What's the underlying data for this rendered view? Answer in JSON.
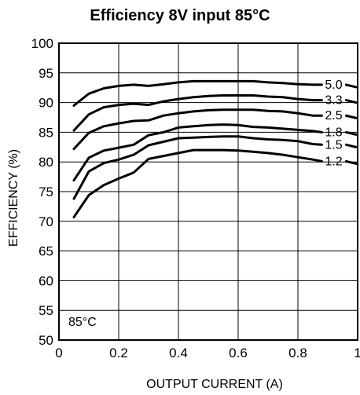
{
  "chart_data": {
    "type": "line",
    "title": "Efficiency 8V input 85°C",
    "xlabel": "OUTPUT CURRENT (A)",
    "ylabel": "EFFICIENCY (%)",
    "xlim": [
      0,
      1
    ],
    "ylim": [
      50,
      100
    ],
    "xticks": [
      0,
      0.2,
      0.4,
      0.6,
      0.8,
      1
    ],
    "xtick_labels": [
      "0",
      "0.2",
      "0.4",
      "0.6",
      "0.8",
      "1"
    ],
    "yticks": [
      50,
      55,
      60,
      65,
      70,
      75,
      80,
      85,
      90,
      95,
      100
    ],
    "ytick_labels": [
      "50",
      "55",
      "60",
      "65",
      "70",
      "75",
      "80",
      "85",
      "90",
      "95",
      "100"
    ],
    "grid": true,
    "annotation": "85°C",
    "series": [
      {
        "name": "5.0",
        "x": [
          0.05,
          0.1,
          0.15,
          0.2,
          0.25,
          0.3,
          0.35,
          0.4,
          0.45,
          0.5,
          0.55,
          0.6,
          0.65,
          0.7,
          0.75,
          0.8,
          0.85,
          0.88
        ],
        "y": [
          89.5,
          91.5,
          92.4,
          92.8,
          93.0,
          92.8,
          93.1,
          93.4,
          93.6,
          93.6,
          93.6,
          93.6,
          93.6,
          93.4,
          93.3,
          93.1,
          93.0,
          93.0
        ]
      },
      {
        "name": "3.3",
        "x": [
          0.05,
          0.1,
          0.15,
          0.2,
          0.25,
          0.3,
          0.35,
          0.4,
          0.45,
          0.5,
          0.55,
          0.6,
          0.65,
          0.7,
          0.75,
          0.8,
          0.85,
          0.88
        ],
        "y": [
          85.3,
          88.0,
          89.2,
          89.6,
          89.8,
          89.6,
          90.2,
          90.6,
          90.9,
          91.1,
          91.2,
          91.2,
          91.2,
          91.0,
          90.9,
          90.6,
          90.4,
          90.4
        ]
      },
      {
        "name": "2.5",
        "x": [
          0.05,
          0.1,
          0.15,
          0.2,
          0.25,
          0.3,
          0.35,
          0.4,
          0.45,
          0.5,
          0.55,
          0.6,
          0.65,
          0.7,
          0.75,
          0.8,
          0.85,
          0.88
        ],
        "y": [
          82.2,
          84.9,
          86.0,
          86.5,
          86.9,
          87.0,
          87.8,
          88.2,
          88.5,
          88.7,
          88.8,
          88.8,
          88.8,
          88.6,
          88.5,
          88.2,
          87.8,
          87.8
        ]
      },
      {
        "name": "1.8",
        "x": [
          0.05,
          0.1,
          0.15,
          0.2,
          0.25,
          0.3,
          0.35,
          0.4,
          0.45,
          0.5,
          0.55,
          0.6,
          0.65,
          0.7,
          0.75,
          0.8,
          0.85,
          0.88
        ],
        "y": [
          76.9,
          80.7,
          81.9,
          82.4,
          82.9,
          84.5,
          85.0,
          85.8,
          86.0,
          86.2,
          86.3,
          86.2,
          85.9,
          85.8,
          85.6,
          85.4,
          85.2,
          85.0
        ]
      },
      {
        "name": "1.5",
        "x": [
          0.05,
          0.1,
          0.15,
          0.2,
          0.25,
          0.3,
          0.35,
          0.4,
          0.45,
          0.5,
          0.55,
          0.6,
          0.65,
          0.7,
          0.75,
          0.8,
          0.85,
          0.88
        ],
        "y": [
          73.8,
          78.4,
          79.8,
          80.4,
          81.2,
          82.8,
          83.4,
          84.0,
          84.1,
          84.2,
          84.3,
          84.3,
          84.0,
          83.8,
          83.7,
          83.5,
          83.0,
          82.9
        ]
      },
      {
        "name": "1.2",
        "x": [
          0.05,
          0.1,
          0.15,
          0.2,
          0.25,
          0.3,
          0.35,
          0.4,
          0.45,
          0.5,
          0.55,
          0.6,
          0.65,
          0.7,
          0.75,
          0.8,
          0.85,
          0.88
        ],
        "y": [
          70.7,
          74.4,
          76.1,
          77.2,
          78.2,
          80.5,
          81.0,
          81.5,
          82.0,
          82.0,
          82.0,
          81.9,
          81.7,
          81.5,
          81.2,
          80.8,
          80.4,
          80.1
        ]
      }
    ]
  }
}
